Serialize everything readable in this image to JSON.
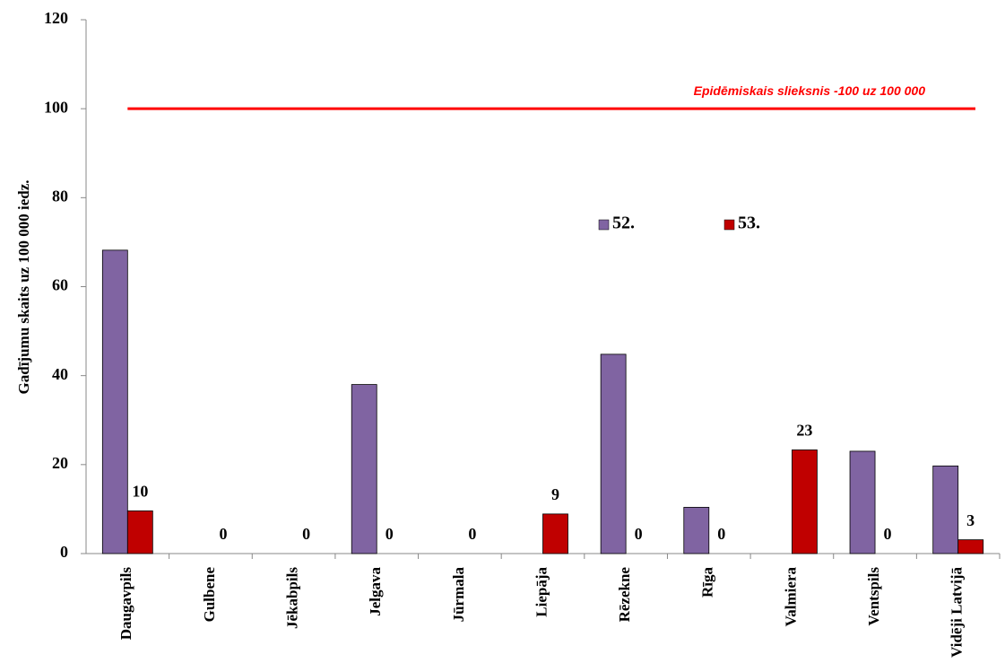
{
  "chart_data": {
    "type": "bar",
    "y_label": "Gadījumu skaits uz 100 000 iedz.",
    "categories": [
      "Daugavpils",
      "Gulbene",
      "Jēkabpils",
      "Jelgava",
      "Jūrmala",
      "Liepāja",
      "Rēzekne",
      "Rīga",
      "Valmiera",
      "Ventspils",
      "Vidēji Latvijā"
    ],
    "series": [
      {
        "name": "52.",
        "color": "#8064a2",
        "values": [
          68.2,
          0,
          0,
          38,
          0,
          0,
          44.8,
          10.4,
          0,
          23,
          19.7
        ]
      },
      {
        "name": "53.",
        "color": "#c00000",
        "values": [
          9.6,
          0,
          0,
          0,
          0,
          8.9,
          0,
          0,
          23.3,
          0,
          3.1
        ],
        "value_labels": [
          "10",
          "0",
          "0",
          "0",
          "0",
          "9",
          "0",
          "0",
          "23",
          "0",
          "3"
        ]
      }
    ],
    "threshold": {
      "value": 100,
      "label": "Epidēmiskais slieksnis -100 uz 100 000",
      "color": "#ff0000"
    },
    "ylim": [
      0,
      120
    ],
    "yticks": [
      0,
      20,
      40,
      60,
      80,
      100,
      120
    ],
    "grid": false
  }
}
